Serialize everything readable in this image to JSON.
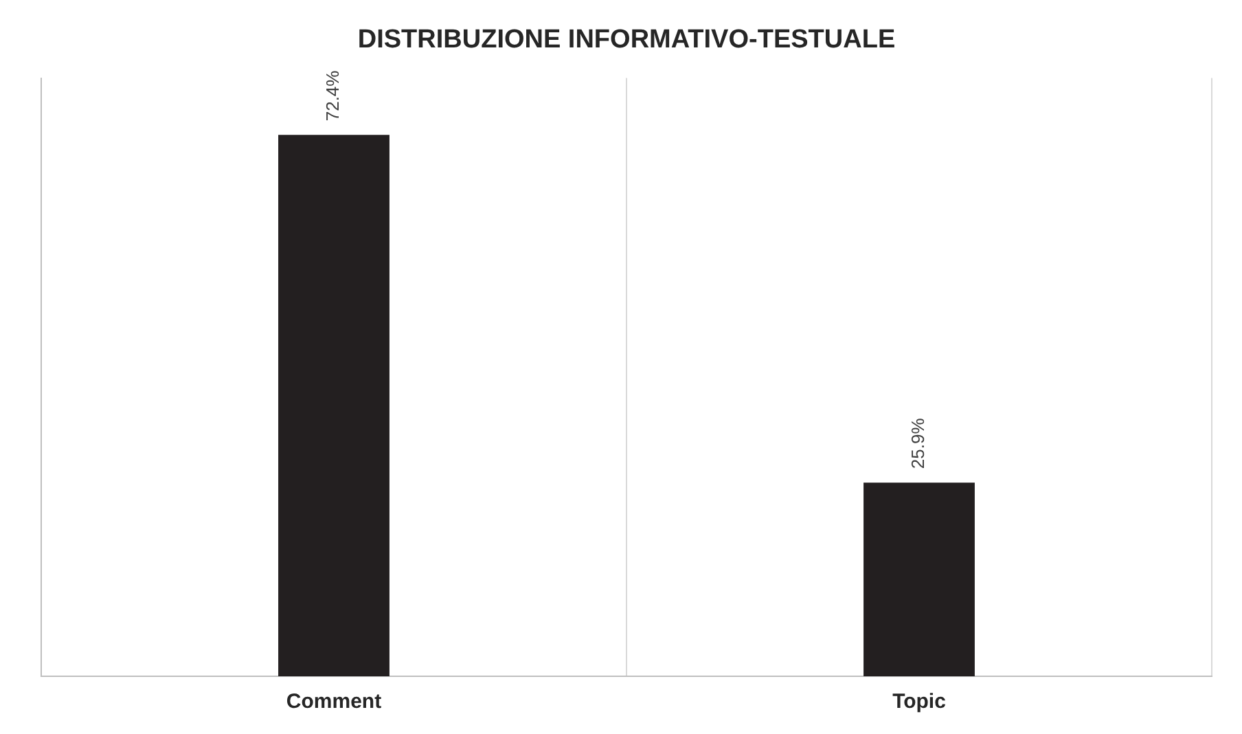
{
  "chart_data": {
    "type": "bar",
    "title": "DISTRIBUZIONE INFORMATIVO-TESTUALE",
    "categories": [
      "Comment",
      "Topic"
    ],
    "values": [
      72.4,
      25.9
    ],
    "value_labels": [
      "72.4%",
      "25.9%"
    ],
    "color": "#231f20",
    "ylim": [
      0,
      80
    ],
    "tick_labels": "x",
    "grid": "x",
    "legend": false
  }
}
